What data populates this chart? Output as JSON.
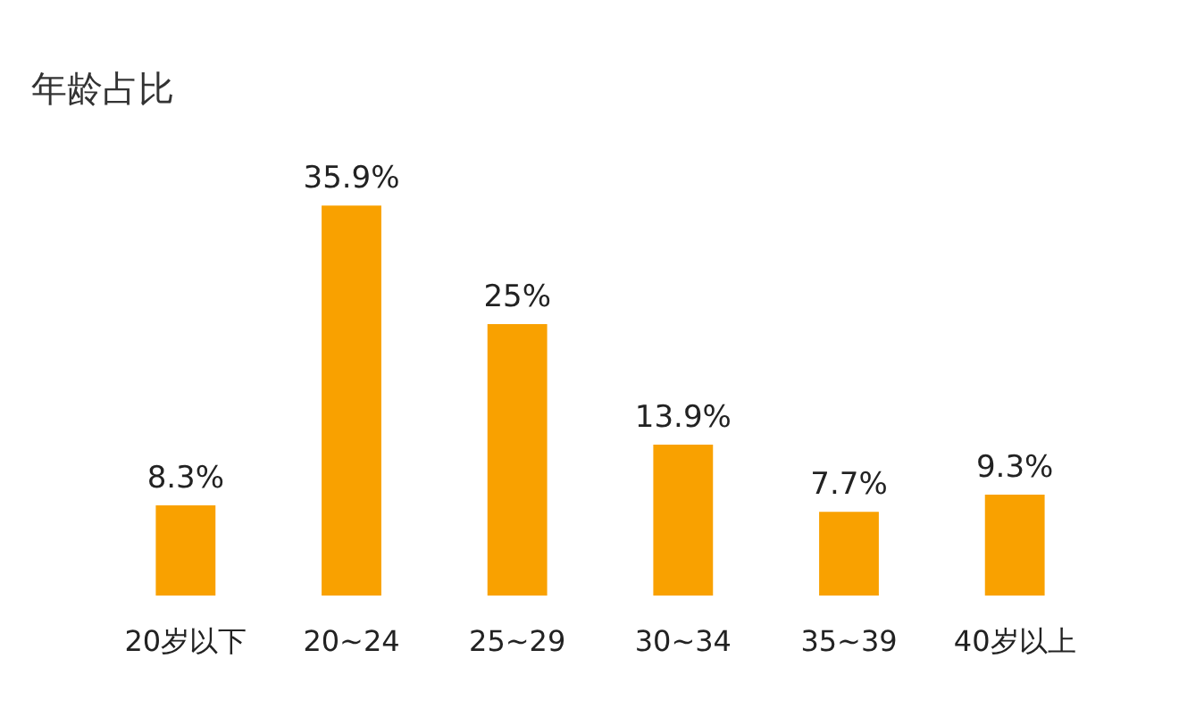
{
  "chart_data": {
    "type": "bar",
    "title": "年龄占比",
    "categories": [
      "20岁以下",
      "20~24",
      "25~29",
      "30~34",
      "35~39",
      "40岁以上"
    ],
    "values": [
      8.3,
      35.9,
      25,
      13.9,
      7.7,
      9.3
    ],
    "value_labels": [
      "8.3%",
      "35.9%",
      "25%",
      "13.9%",
      "7.7%",
      "9.3%"
    ],
    "color": "#f9a100",
    "grid": false
  }
}
